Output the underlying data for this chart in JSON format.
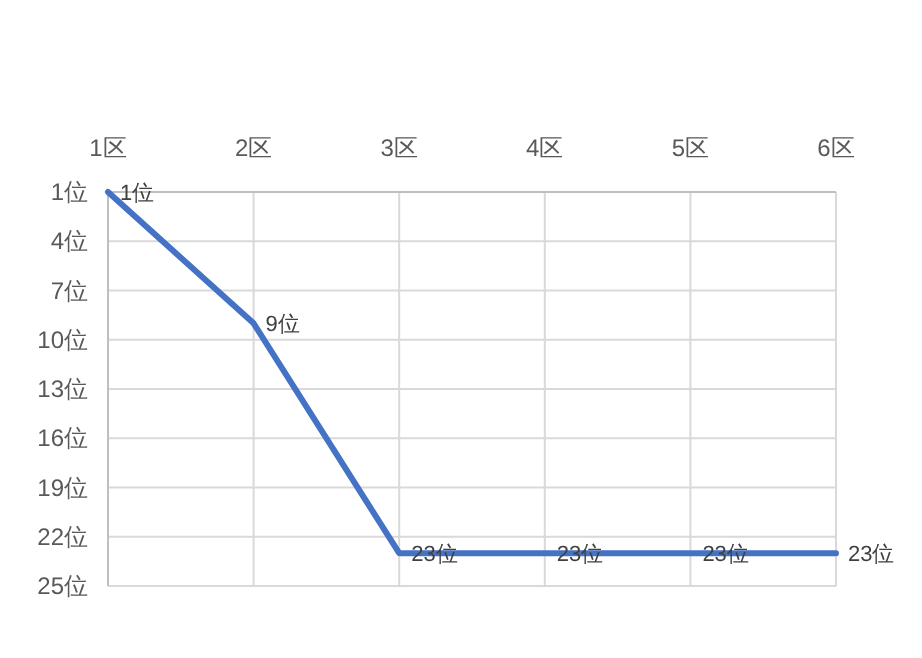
{
  "chart_data": {
    "type": "line",
    "categories": [
      "1区",
      "2区",
      "3区",
      "4区",
      "5区",
      "6区"
    ],
    "series": [
      {
        "color": "#4472c4",
        "values": [
          1,
          9,
          23,
          23,
          23,
          23
        ],
        "value_labels": [
          "1位",
          "9位",
          "23位",
          "23位",
          "23位",
          "23位"
        ]
      }
    ],
    "ylim": [
      25,
      1
    ],
    "yticks": [
      {
        "value": 1,
        "label": "1位"
      },
      {
        "value": 4,
        "label": "4位"
      },
      {
        "value": 7,
        "label": "7位"
      },
      {
        "value": 10,
        "label": "10位"
      },
      {
        "value": 13,
        "label": "13位"
      },
      {
        "value": 16,
        "label": "16位"
      },
      {
        "value": 19,
        "label": "19位"
      },
      {
        "value": 22,
        "label": "22位"
      },
      {
        "value": 25,
        "label": "25位"
      }
    ],
    "grid": true,
    "marker": "none",
    "line_style": "solid"
  }
}
